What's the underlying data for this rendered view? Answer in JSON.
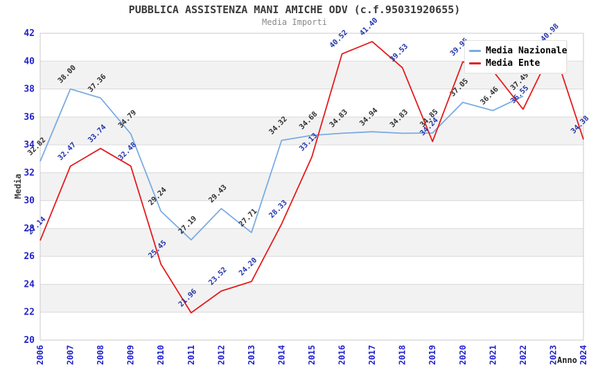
{
  "header": {
    "title": "PUBBLICA ASSISTENZA MANI AMICHE ODV (c.f.95031920655)",
    "subtitle": "Media Importi"
  },
  "axes": {
    "y_title": "Media",
    "x_title": "Anno",
    "y_ticks": [
      42,
      40,
      38,
      36,
      34,
      32,
      30,
      28,
      26,
      24,
      22,
      20
    ],
    "x_ticks": [
      "2006",
      "2007",
      "2008",
      "2009",
      "2010",
      "2011",
      "2012",
      "2013",
      "2014",
      "2015",
      "2016",
      "2017",
      "2018",
      "2019",
      "2020",
      "2021",
      "2022",
      "2023",
      "2024"
    ],
    "tick_color": "#2222cc",
    "band_color": "#f2f2f2",
    "grid_color": "#d9d9d9",
    "border_color": "#c9c9c9"
  },
  "legend": {
    "items": [
      {
        "label": "Media Nazionale",
        "color": "#79abe2"
      },
      {
        "label": "Media Ente",
        "color": "#e41a1c"
      }
    ]
  },
  "chart_data": {
    "type": "line",
    "title": "Media Importi",
    "xlabel": "Anno",
    "ylabel": "Media",
    "ylim": [
      20,
      42
    ],
    "grid": true,
    "legend_position": "top-right",
    "x": [
      2006,
      2007,
      2008,
      2009,
      2010,
      2011,
      2012,
      2013,
      2014,
      2015,
      2016,
      2017,
      2018,
      2019,
      2020,
      2021,
      2022,
      2023,
      2024
    ],
    "series": [
      {
        "name": "Media Nazionale",
        "color": "#79abe2",
        "label_color": "#303030",
        "values": [
          32.82,
          38.0,
          37.36,
          34.79,
          29.24,
          27.19,
          29.43,
          27.71,
          34.32,
          34.68,
          34.83,
          34.94,
          34.83,
          34.85,
          37.05,
          36.46,
          37.49,
          null,
          null
        ],
        "point_labels": [
          "32.82",
          "38.00",
          "37.36",
          "34.79",
          "29.24",
          "27.19",
          "29.43",
          "27.71",
          "34.32",
          "34.68",
          "34.83",
          "34.94",
          "34.83",
          "34.85",
          "37.05",
          "36.46",
          "37.49",
          null,
          null
        ]
      },
      {
        "name": "Media Ente",
        "color": "#e41a1c",
        "label_color": "#2436ab",
        "values": [
          27.14,
          32.47,
          33.74,
          32.48,
          25.45,
          21.96,
          23.52,
          24.2,
          28.33,
          33.13,
          40.52,
          41.4,
          39.53,
          34.24,
          39.95,
          39.31,
          36.55,
          40.98,
          34.38
        ],
        "point_labels": [
          "27.14",
          "32.47",
          "33.74",
          "32.48",
          "25.45",
          "21.96",
          "23.52",
          "24.20",
          "28.33",
          "33.13",
          "40.52",
          "41.40",
          "39.53",
          "34.24",
          "39.95",
          "39.31",
          "36.55",
          "40.98",
          "34.38"
        ]
      }
    ]
  }
}
